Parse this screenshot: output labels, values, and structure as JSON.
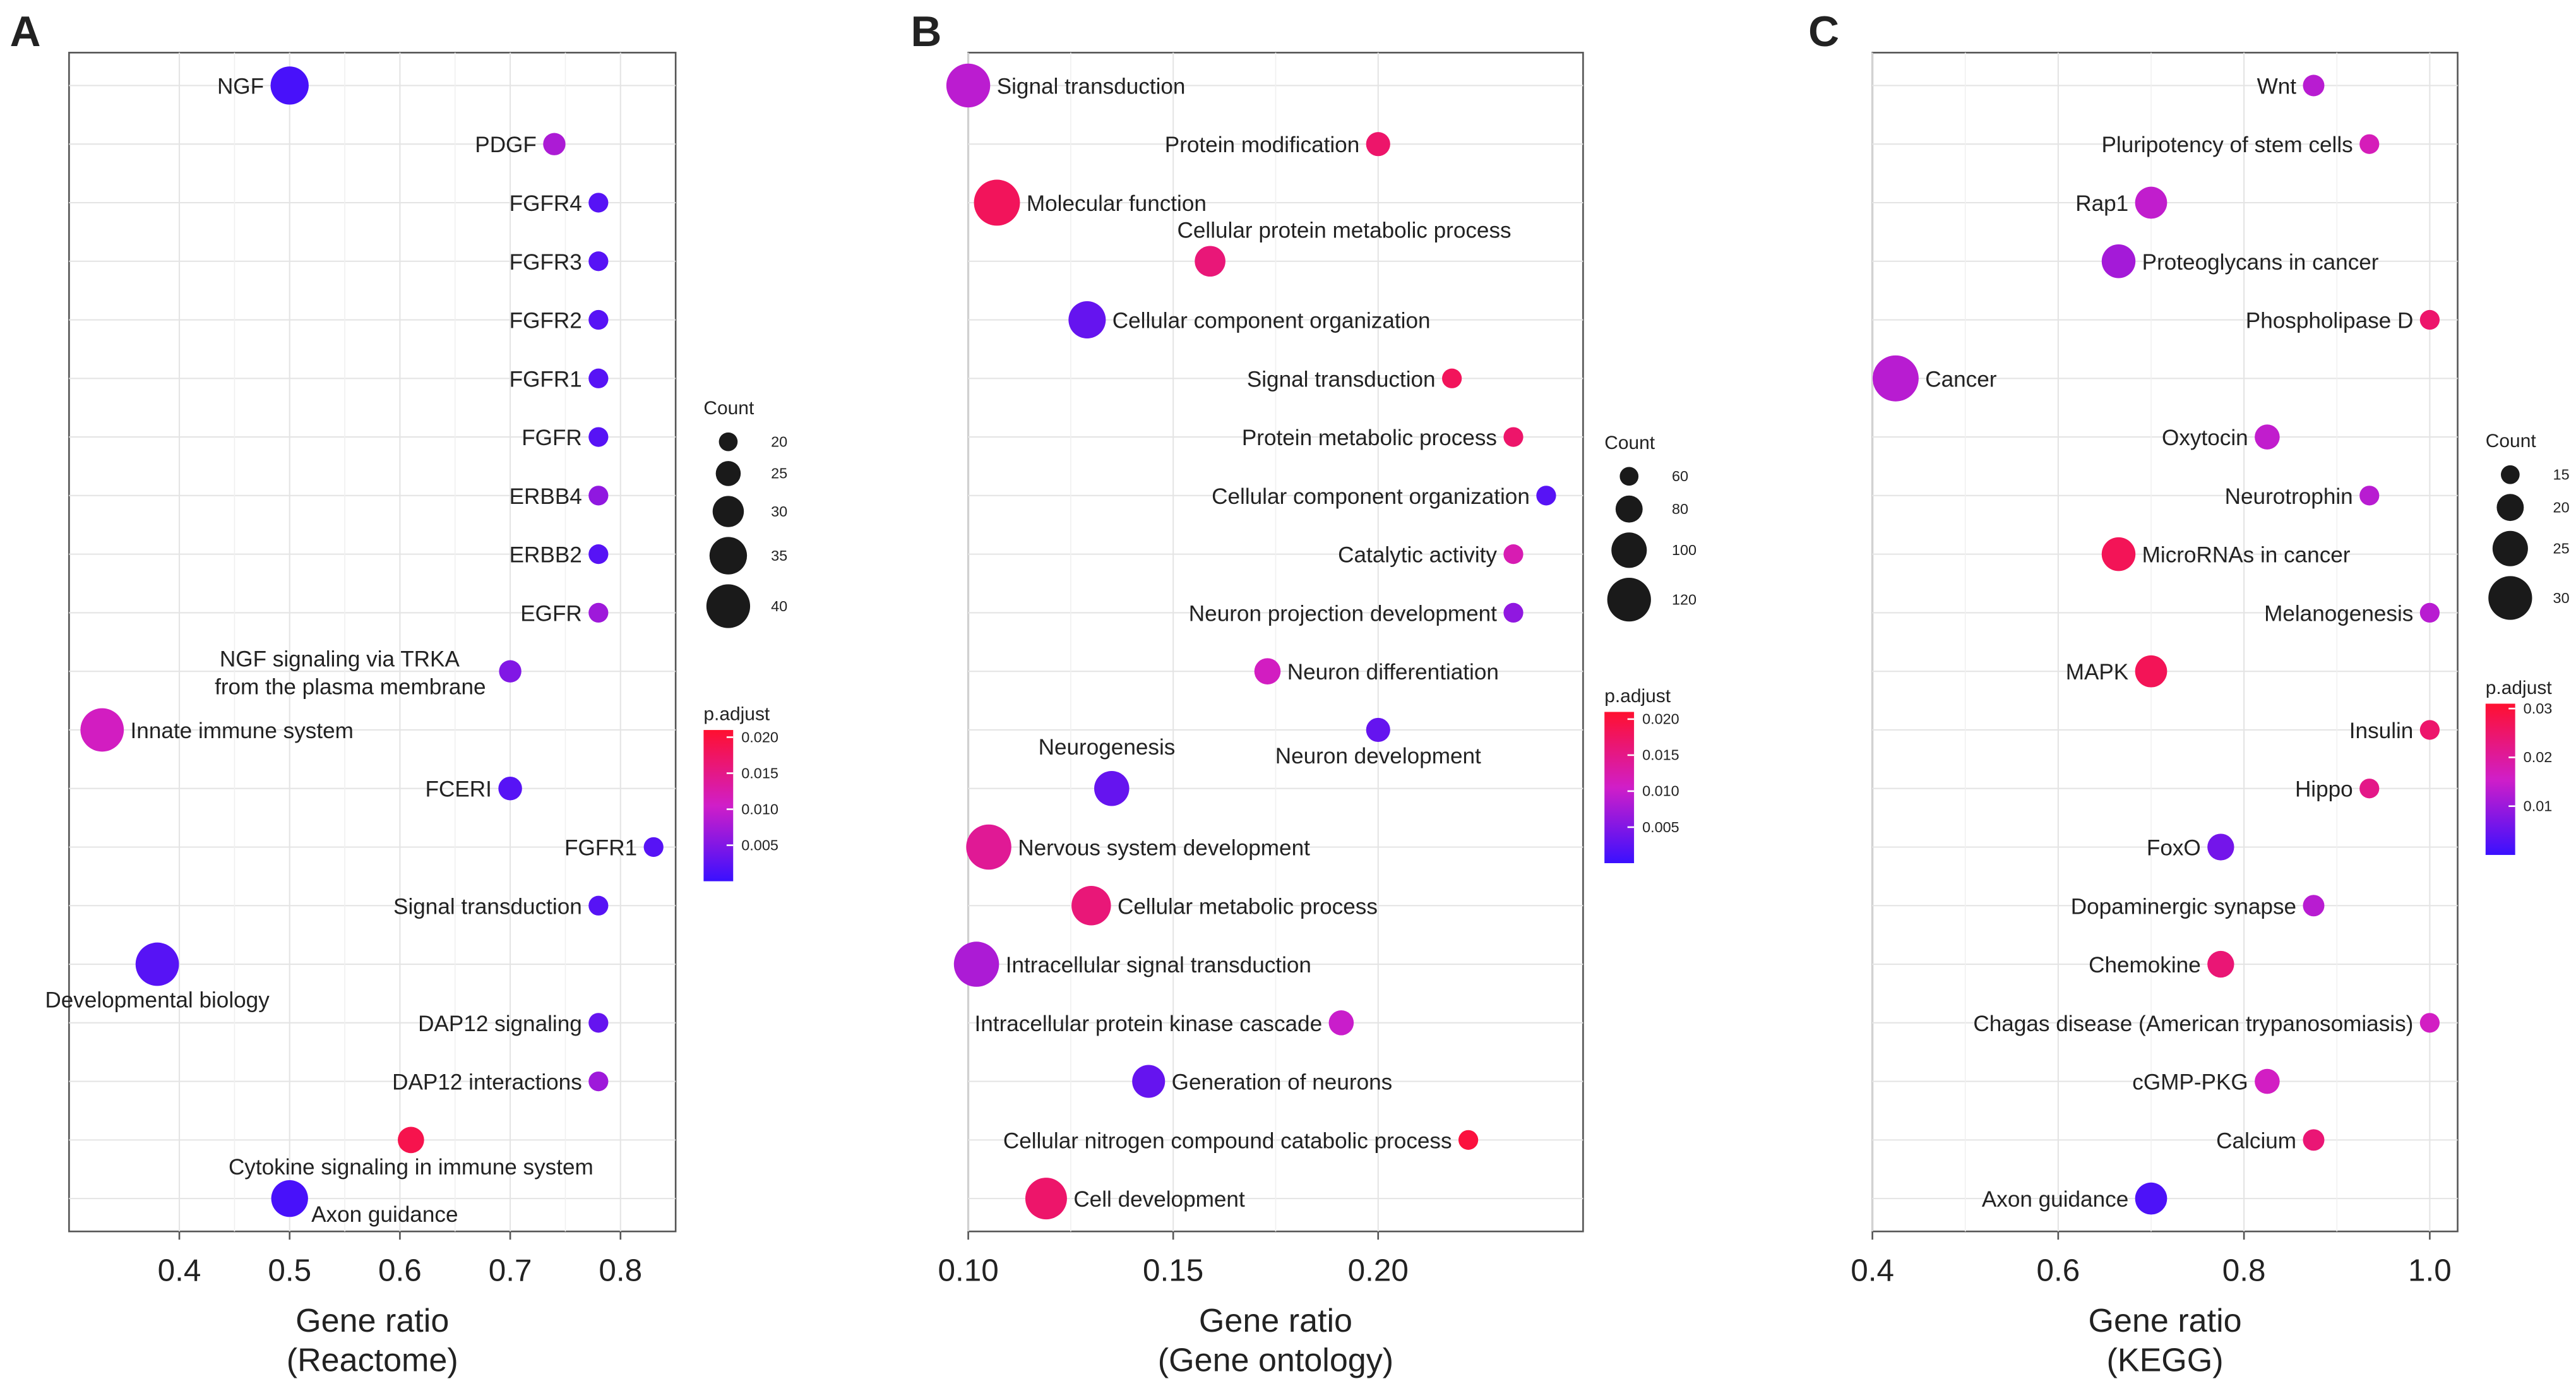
{
  "chart_data": [
    {
      "panel_letter": "A",
      "type": "scatter",
      "xlabel": "Gene ratio",
      "xlabel_sub": "(Reactome)",
      "xlim": [
        0.3,
        0.85
      ],
      "xticks": [
        0.4,
        0.5,
        0.6,
        0.7,
        0.8
      ],
      "xtick_labels": [
        "0.4",
        "0.5",
        "0.6",
        "0.7",
        "0.8"
      ],
      "size_legend_title": "Count",
      "size_min": 20,
      "size_max": 40,
      "size_legend": [
        20,
        25,
        30,
        35,
        40
      ],
      "size_legend_labels": [
        "20",
        "25",
        "30",
        "35",
        "40"
      ],
      "color_legend_title": "p.adjust",
      "color_min": 0.0,
      "color_max": 0.021,
      "color_ticks": [
        0.005,
        0.01,
        0.015,
        0.02
      ],
      "color_tick_labels": [
        "0.005",
        "0.010",
        "0.015",
        "0.020"
      ],
      "points": [
        {
          "label_lines": [
            "NGF"
          ],
          "x": 0.5,
          "count": 34,
          "p": 0.001,
          "label_pos": "left"
        },
        {
          "label_lines": [
            "PDGF"
          ],
          "x": 0.74,
          "count": 22,
          "p": 0.008,
          "label_pos": "left"
        },
        {
          "label_lines": [
            "FGFR4"
          ],
          "x": 0.78,
          "count": 20,
          "p": 0.002,
          "label_pos": "left"
        },
        {
          "label_lines": [
            "FGFR3"
          ],
          "x": 0.78,
          "count": 20,
          "p": 0.002,
          "label_pos": "left"
        },
        {
          "label_lines": [
            "FGFR2"
          ],
          "x": 0.78,
          "count": 20,
          "p": 0.002,
          "label_pos": "left"
        },
        {
          "label_lines": [
            "FGFR1"
          ],
          "x": 0.78,
          "count": 20,
          "p": 0.002,
          "label_pos": "left"
        },
        {
          "label_lines": [
            "FGFR"
          ],
          "x": 0.78,
          "count": 20,
          "p": 0.002,
          "label_pos": "left"
        },
        {
          "label_lines": [
            "ERBB4"
          ],
          "x": 0.78,
          "count": 20,
          "p": 0.006,
          "label_pos": "left"
        },
        {
          "label_lines": [
            "ERBB2"
          ],
          "x": 0.78,
          "count": 20,
          "p": 0.002,
          "label_pos": "left"
        },
        {
          "label_lines": [
            "EGFR"
          ],
          "x": 0.78,
          "count": 20,
          "p": 0.007,
          "label_pos": "left"
        },
        {
          "label_lines": [
            "NGF signaling via TRKA",
            "from the plasma membrane"
          ],
          "x": 0.7,
          "count": 22,
          "p": 0.005,
          "label_pos": "left-multi"
        },
        {
          "label_lines": [
            "Innate immune system"
          ],
          "x": 0.33,
          "count": 38,
          "p": 0.011,
          "label_pos": "right"
        },
        {
          "label_lines": [
            "FCERI"
          ],
          "x": 0.7,
          "count": 23,
          "p": 0.002,
          "label_pos": "left"
        },
        {
          "label_lines": [
            "FGFR1"
          ],
          "x": 0.83,
          "count": 18,
          "p": 0.002,
          "label_pos": "left"
        },
        {
          "label_lines": [
            "Signal transduction"
          ],
          "x": 0.78,
          "count": 20,
          "p": 0.002,
          "label_pos": "left"
        },
        {
          "label_lines": [
            "Developmental biology"
          ],
          "x": 0.38,
          "count": 38,
          "p": 0.002,
          "label_pos": "below"
        },
        {
          "label_lines": [
            "DAP12 signaling"
          ],
          "x": 0.78,
          "count": 20,
          "p": 0.003,
          "label_pos": "left"
        },
        {
          "label_lines": [
            "DAP12 interactions"
          ],
          "x": 0.78,
          "count": 20,
          "p": 0.007,
          "label_pos": "left"
        },
        {
          "label_lines": [
            "Cytokine signaling in immune system"
          ],
          "x": 0.61,
          "count": 25,
          "p": 0.019,
          "label_pos": "below"
        },
        {
          "label_lines": [
            "Axon guidance"
          ],
          "x": 0.5,
          "count": 33,
          "p": 0.001,
          "label_pos": "right-below"
        }
      ]
    },
    {
      "panel_letter": "B",
      "type": "scatter",
      "xlabel": "Gene ratio",
      "xlabel_sub": "(Gene ontology)",
      "xlim": [
        0.1,
        0.25
      ],
      "xticks": [
        0.1,
        0.15,
        0.2
      ],
      "xtick_labels": [
        "0.10",
        "0.15",
        "0.20"
      ],
      "size_legend_title": "Count",
      "size_min": 60,
      "size_max": 120,
      "size_legend": [
        60,
        80,
        100,
        120
      ],
      "size_legend_labels": [
        "60",
        "80",
        "100",
        "120"
      ],
      "color_legend_title": "p.adjust",
      "color_min": 0.0,
      "color_max": 0.021,
      "color_ticks": [
        0.005,
        0.01,
        0.015,
        0.02
      ],
      "color_tick_labels": [
        "0.005",
        "0.010",
        "0.015",
        "0.020"
      ],
      "points": [
        {
          "label_lines": [
            "Signal transduction"
          ],
          "x": 0.1,
          "count": 115,
          "p": 0.009,
          "label_pos": "right"
        },
        {
          "label_lines": [
            "Protein modification"
          ],
          "x": 0.2,
          "count": 70,
          "p": 0.017,
          "label_pos": "left"
        },
        {
          "label_lines": [
            "Molecular function"
          ],
          "x": 0.107,
          "count": 120,
          "p": 0.018,
          "label_pos": "right"
        },
        {
          "label_lines": [
            "Cellular protein metabolic process"
          ],
          "x": 0.159,
          "count": 85,
          "p": 0.016,
          "label_pos": "above-right"
        },
        {
          "label_lines": [
            "Cellular component organization"
          ],
          "x": 0.129,
          "count": 100,
          "p": 0.003,
          "label_pos": "right"
        },
        {
          "label_lines": [
            "Signal transduction"
          ],
          "x": 0.218,
          "count": 60,
          "p": 0.018,
          "label_pos": "left"
        },
        {
          "label_lines": [
            "Protein metabolic process"
          ],
          "x": 0.233,
          "count": 60,
          "p": 0.017,
          "label_pos": "left"
        },
        {
          "label_lines": [
            "Cellular component organization"
          ],
          "x": 0.241,
          "count": 55,
          "p": 0.002,
          "label_pos": "left"
        },
        {
          "label_lines": [
            "Catalytic activity"
          ],
          "x": 0.233,
          "count": 60,
          "p": 0.012,
          "label_pos": "left"
        },
        {
          "label_lines": [
            "Neuron projection development"
          ],
          "x": 0.233,
          "count": 60,
          "p": 0.006,
          "label_pos": "left"
        },
        {
          "label_lines": [
            "Neuron differentiation"
          ],
          "x": 0.173,
          "count": 75,
          "p": 0.011,
          "label_pos": "right"
        },
        {
          "label_lines": [
            "Neuron development"
          ],
          "x": 0.2,
          "count": 70,
          "p": 0.003,
          "label_pos": "below"
        },
        {
          "label_lines": [
            "Neurogenesis"
          ],
          "x": 0.135,
          "count": 95,
          "p": 0.003,
          "label_pos": "above"
        },
        {
          "label_lines": [
            "Nervous system development"
          ],
          "x": 0.105,
          "count": 118,
          "p": 0.014,
          "label_pos": "right"
        },
        {
          "label_lines": [
            "Cellular metabolic process"
          ],
          "x": 0.13,
          "count": 105,
          "p": 0.016,
          "label_pos": "right"
        },
        {
          "label_lines": [
            "Intracellular signal transduction"
          ],
          "x": 0.102,
          "count": 118,
          "p": 0.008,
          "label_pos": "right"
        },
        {
          "label_lines": [
            "Intracellular protein kinase cascade"
          ],
          "x": 0.191,
          "count": 72,
          "p": 0.01,
          "label_pos": "left"
        },
        {
          "label_lines": [
            "Generation of neurons"
          ],
          "x": 0.144,
          "count": 90,
          "p": 0.003,
          "label_pos": "right"
        },
        {
          "label_lines": [
            "Cellular nitrogen compound catabolic process"
          ],
          "x": 0.222,
          "count": 60,
          "p": 0.02,
          "label_pos": "left"
        },
        {
          "label_lines": [
            "Cell development"
          ],
          "x": 0.119,
          "count": 110,
          "p": 0.017,
          "label_pos": "right"
        }
      ]
    },
    {
      "panel_letter": "C",
      "type": "scatter",
      "xlabel": "Gene ratio",
      "xlabel_sub": "(KEGG)",
      "xlim": [
        0.4,
        1.03
      ],
      "xticks": [
        0.4,
        0.6,
        0.8,
        1.0
      ],
      "xtick_labels": [
        "0.4",
        "0.6",
        "0.8",
        "1.0"
      ],
      "size_legend_title": "Count",
      "size_min": 15,
      "size_max": 30,
      "size_legend": [
        15,
        20,
        25,
        30
      ],
      "size_legend_labels": [
        "15",
        "20",
        "25",
        "30"
      ],
      "color_legend_title": "p.adjust",
      "color_min": 0.0,
      "color_max": 0.031,
      "color_ticks": [
        0.01,
        0.02,
        0.03
      ],
      "color_tick_labels": [
        "0.01",
        "0.02",
        "0.03"
      ],
      "points": [
        {
          "label_lines": [
            "Wnt"
          ],
          "x": 0.875,
          "count": 16,
          "p": 0.013,
          "label_pos": "left"
        },
        {
          "label_lines": [
            "Pluripotency of stem cells"
          ],
          "x": 0.935,
          "count": 14,
          "p": 0.017,
          "label_pos": "left"
        },
        {
          "label_lines": [
            "Rap1"
          ],
          "x": 0.7,
          "count": 22,
          "p": 0.014,
          "label_pos": "left"
        },
        {
          "label_lines": [
            "Proteoglycans in cancer"
          ],
          "x": 0.665,
          "count": 23,
          "p": 0.011,
          "label_pos": "right"
        },
        {
          "label_lines": [
            "Phospholipase D"
          ],
          "x": 1.0,
          "count": 12,
          "p": 0.025,
          "label_pos": "left"
        },
        {
          "label_lines": [
            "Cancer"
          ],
          "x": 0.425,
          "count": 30,
          "p": 0.013,
          "label_pos": "right"
        },
        {
          "label_lines": [
            "Oxytocin"
          ],
          "x": 0.825,
          "count": 18,
          "p": 0.014,
          "label_pos": "left"
        },
        {
          "label_lines": [
            "Neurotrophin"
          ],
          "x": 0.935,
          "count": 14,
          "p": 0.013,
          "label_pos": "left"
        },
        {
          "label_lines": [
            "MicroRNAs in cancer"
          ],
          "x": 0.665,
          "count": 23,
          "p": 0.027,
          "label_pos": "right"
        },
        {
          "label_lines": [
            "Melanogenesis"
          ],
          "x": 1.0,
          "count": 12,
          "p": 0.013,
          "label_pos": "left"
        },
        {
          "label_lines": [
            "MAPK"
          ],
          "x": 0.7,
          "count": 22,
          "p": 0.027,
          "label_pos": "left"
        },
        {
          "label_lines": [
            "Insulin"
          ],
          "x": 1.0,
          "count": 12,
          "p": 0.025,
          "label_pos": "left"
        },
        {
          "label_lines": [
            "Hippo"
          ],
          "x": 0.935,
          "count": 14,
          "p": 0.022,
          "label_pos": "left"
        },
        {
          "label_lines": [
            "FoxO"
          ],
          "x": 0.775,
          "count": 19,
          "p": 0.006,
          "label_pos": "left"
        },
        {
          "label_lines": [
            "Dopaminergic synapse"
          ],
          "x": 0.875,
          "count": 16,
          "p": 0.013,
          "label_pos": "left"
        },
        {
          "label_lines": [
            "Chemokine"
          ],
          "x": 0.775,
          "count": 19,
          "p": 0.024,
          "label_pos": "left"
        },
        {
          "label_lines": [
            "Chagas disease (American trypanosomiasis)"
          ],
          "x": 1.0,
          "count": 12,
          "p": 0.016,
          "label_pos": "left"
        },
        {
          "label_lines": [
            "cGMP-PKG"
          ],
          "x": 0.825,
          "count": 18,
          "p": 0.016,
          "label_pos": "left"
        },
        {
          "label_lines": [
            "Calcium"
          ],
          "x": 0.875,
          "count": 16,
          "p": 0.024,
          "label_pos": "left"
        },
        {
          "label_lines": [
            "Axon guidance"
          ],
          "x": 0.7,
          "count": 22,
          "p": 0.002,
          "label_pos": "left"
        }
      ]
    }
  ]
}
